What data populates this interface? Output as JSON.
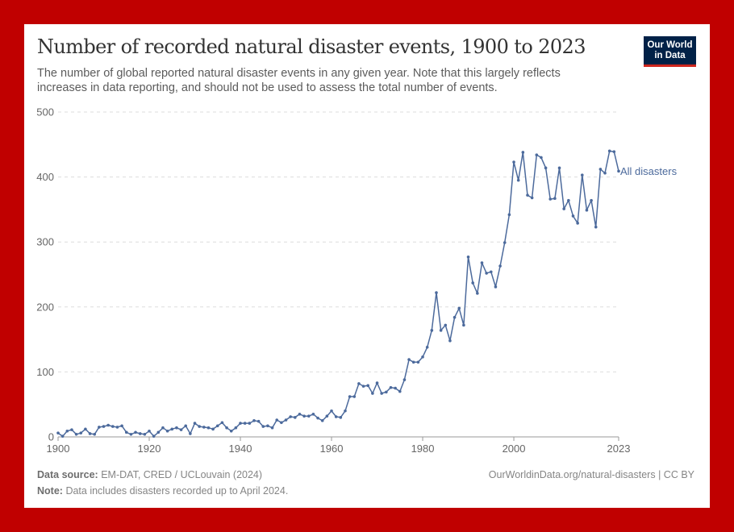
{
  "header": {
    "title": "Number of recorded natural disaster events, 1900 to 2023",
    "subtitle": "The number of global reported natural disaster events in any given year. Note that this largely reflects increases in data reporting, and should not be used to assess the total number of events.",
    "logo_line1": "Our World",
    "logo_line2": "in Data"
  },
  "footer": {
    "source_label": "Data source:",
    "source_text": "EM-DAT, CRED / UCLouvain (2024)",
    "note_label": "Note:",
    "note_text": "Data includes disasters recorded up to April 2024.",
    "url_text": "OurWorldinData.org/natural-disasters | CC BY"
  },
  "colors": {
    "frame": "#c00000",
    "series": "#4c6a9c",
    "grid": "#dddddd",
    "axis_text": "#666666",
    "logo_bg": "#002147",
    "logo_accent": "#ce261e"
  },
  "chart_data": {
    "type": "line",
    "title": "Number of recorded natural disaster events, 1900 to 2023",
    "xlabel": "",
    "ylabel": "",
    "xlim": [
      1900,
      2023
    ],
    "ylim": [
      0,
      500
    ],
    "x_ticks": [
      "1900",
      "1920",
      "1940",
      "1960",
      "1980",
      "2000",
      "2023"
    ],
    "y_ticks": [
      "0",
      "100",
      "200",
      "300",
      "400",
      "500"
    ],
    "grid": true,
    "legend": "inline-right",
    "x": [
      1900,
      1901,
      1902,
      1903,
      1904,
      1905,
      1906,
      1907,
      1908,
      1909,
      1910,
      1911,
      1912,
      1913,
      1914,
      1915,
      1916,
      1917,
      1918,
      1919,
      1920,
      1921,
      1922,
      1923,
      1924,
      1925,
      1926,
      1927,
      1928,
      1929,
      1930,
      1931,
      1932,
      1933,
      1934,
      1935,
      1936,
      1937,
      1938,
      1939,
      1940,
      1941,
      1942,
      1943,
      1944,
      1945,
      1946,
      1947,
      1948,
      1949,
      1950,
      1951,
      1952,
      1953,
      1954,
      1955,
      1956,
      1957,
      1958,
      1959,
      1960,
      1961,
      1962,
      1963,
      1964,
      1965,
      1966,
      1967,
      1968,
      1969,
      1970,
      1971,
      1972,
      1973,
      1974,
      1975,
      1976,
      1977,
      1978,
      1979,
      1980,
      1981,
      1982,
      1983,
      1984,
      1985,
      1986,
      1987,
      1988,
      1989,
      1990,
      1991,
      1992,
      1993,
      1994,
      1995,
      1996,
      1997,
      1998,
      1999,
      2000,
      2001,
      2002,
      2003,
      2004,
      2005,
      2006,
      2007,
      2008,
      2009,
      2010,
      2011,
      2012,
      2013,
      2014,
      2015,
      2016,
      2017,
      2018,
      2019,
      2020,
      2021,
      2022,
      2023
    ],
    "series": [
      {
        "name": "All disasters",
        "values": [
          6,
          1,
          9,
          11,
          4,
          6,
          12,
          5,
          4,
          15,
          16,
          18,
          16,
          15,
          17,
          7,
          4,
          7,
          5,
          4,
          9,
          1,
          7,
          14,
          9,
          12,
          14,
          11,
          17,
          5,
          21,
          16,
          15,
          14,
          12,
          17,
          22,
          14,
          9,
          14,
          21,
          21,
          21,
          25,
          24,
          16,
          17,
          14,
          26,
          22,
          26,
          31,
          30,
          35,
          32,
          32,
          35,
          29,
          25,
          32,
          40,
          31,
          30,
          40,
          62,
          62,
          82,
          78,
          79,
          67,
          83,
          67,
          69,
          76,
          75,
          70,
          88,
          119,
          115,
          115,
          123,
          138,
          164,
          222,
          164,
          172,
          148,
          184,
          198,
          172,
          277,
          237,
          221,
          268,
          252,
          254,
          231,
          263,
          299,
          342,
          423,
          395,
          438,
          372,
          368,
          434,
          430,
          414,
          366,
          367,
          414,
          351,
          364,
          340,
          329,
          403,
          349,
          364,
          323,
          412,
          406,
          440,
          439,
          409
        ]
      }
    ]
  }
}
